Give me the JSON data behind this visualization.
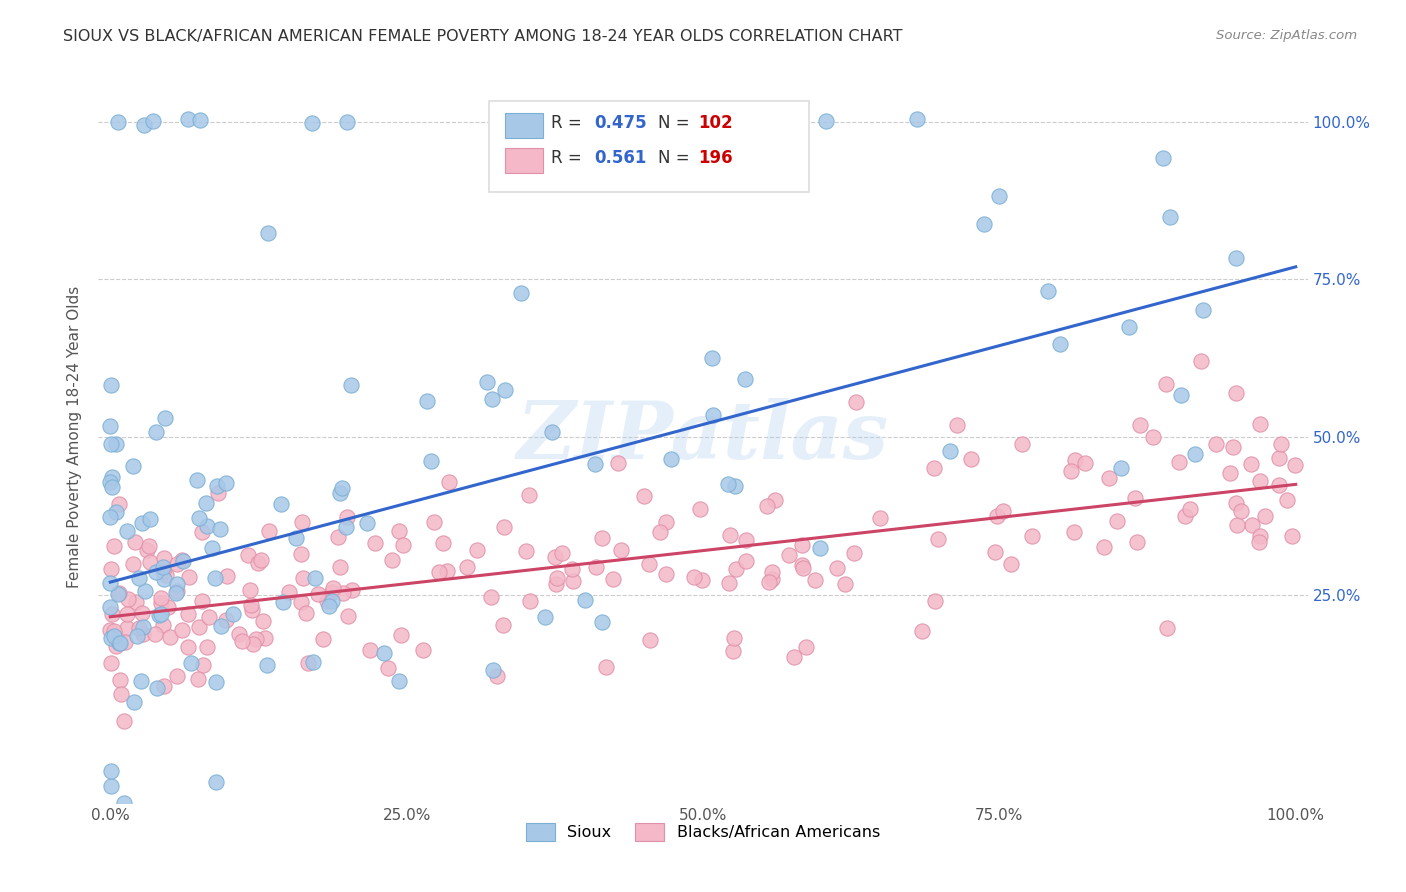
{
  "title": "SIOUX VS BLACK/AFRICAN AMERICAN FEMALE POVERTY AMONG 18-24 YEAR OLDS CORRELATION CHART",
  "source": "Source: ZipAtlas.com",
  "ylabel": "Female Poverty Among 18-24 Year Olds",
  "watermark": "ZIPatlas",
  "sioux_color": "#a8c8e8",
  "black_color": "#f4b8c8",
  "sioux_edge_color": "#7bafd4",
  "black_edge_color": "#e090a8",
  "sioux_line_color": "#3366cc",
  "black_line_color": "#cc4466",
  "background_color": "#ffffff",
  "grid_color": "#cccccc",
  "R_sioux": 0.475,
  "N_sioux": 102,
  "R_black": 0.561,
  "N_black": 196,
  "sioux_intercept": 0.27,
  "sioux_slope": 0.5,
  "black_intercept": 0.215,
  "black_slope": 0.21,
  "xtick_labels": [
    "0.0%",
    "25.0%",
    "50.0%",
    "75.0%",
    "100.0%"
  ],
  "xtick_vals": [
    0,
    0.25,
    0.5,
    0.75,
    1.0
  ],
  "ytick_vals": [
    0.25,
    0.5,
    0.75,
    1.0
  ],
  "ytick_labels": [
    "25.0%",
    "50.0%",
    "75.0%",
    "100.0%"
  ],
  "ylim": [
    -0.08,
    1.08
  ],
  "xlim": [
    -0.01,
    1.01
  ],
  "legend_R_color": "#3366cc",
  "legend_N_color": "#cc0000",
  "title_color": "#333333",
  "source_color": "#888888",
  "ylabel_color": "#555555"
}
